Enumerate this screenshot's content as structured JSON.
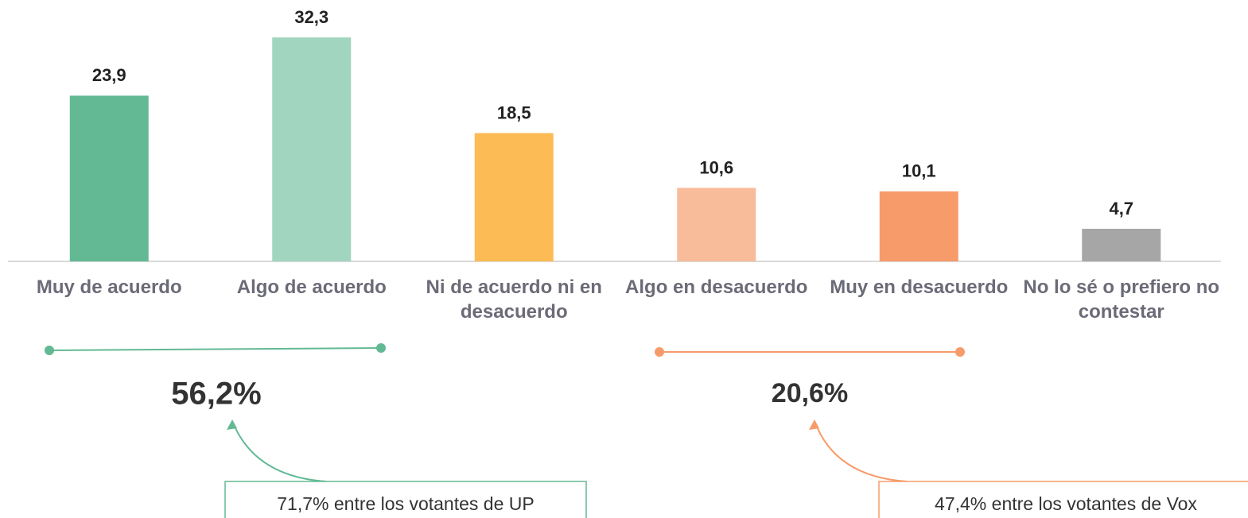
{
  "chart_data": {
    "type": "bar",
    "categories": [
      "Muy de acuerdo",
      "Algo de acuerdo",
      "Ni de acuerdo ni en desacuerdo",
      "Algo en desacuerdo",
      "Muy en desacuerdo",
      "No lo sé o prefiero no contestar"
    ],
    "values": [
      23.9,
      32.3,
      18.5,
      10.6,
      10.1,
      4.7
    ],
    "value_labels": [
      "23,9",
      "32,3",
      "18,5",
      "10,6",
      "10,1",
      "4,7"
    ],
    "colors": [
      "#62b994",
      "#a2d5bf",
      "#fdbb55",
      "#f9bc9a",
      "#f79b6a",
      "#a6a6a6"
    ],
    "ylim": [
      0,
      37.7
    ],
    "groups": [
      {
        "total": "56,2%",
        "note": "71,7% entre los votantes de UP",
        "color": "#62b994"
      },
      {
        "total": "20,6%",
        "note": "47,4% entre los votantes de Vox",
        "color": "#f79b6a"
      }
    ]
  }
}
